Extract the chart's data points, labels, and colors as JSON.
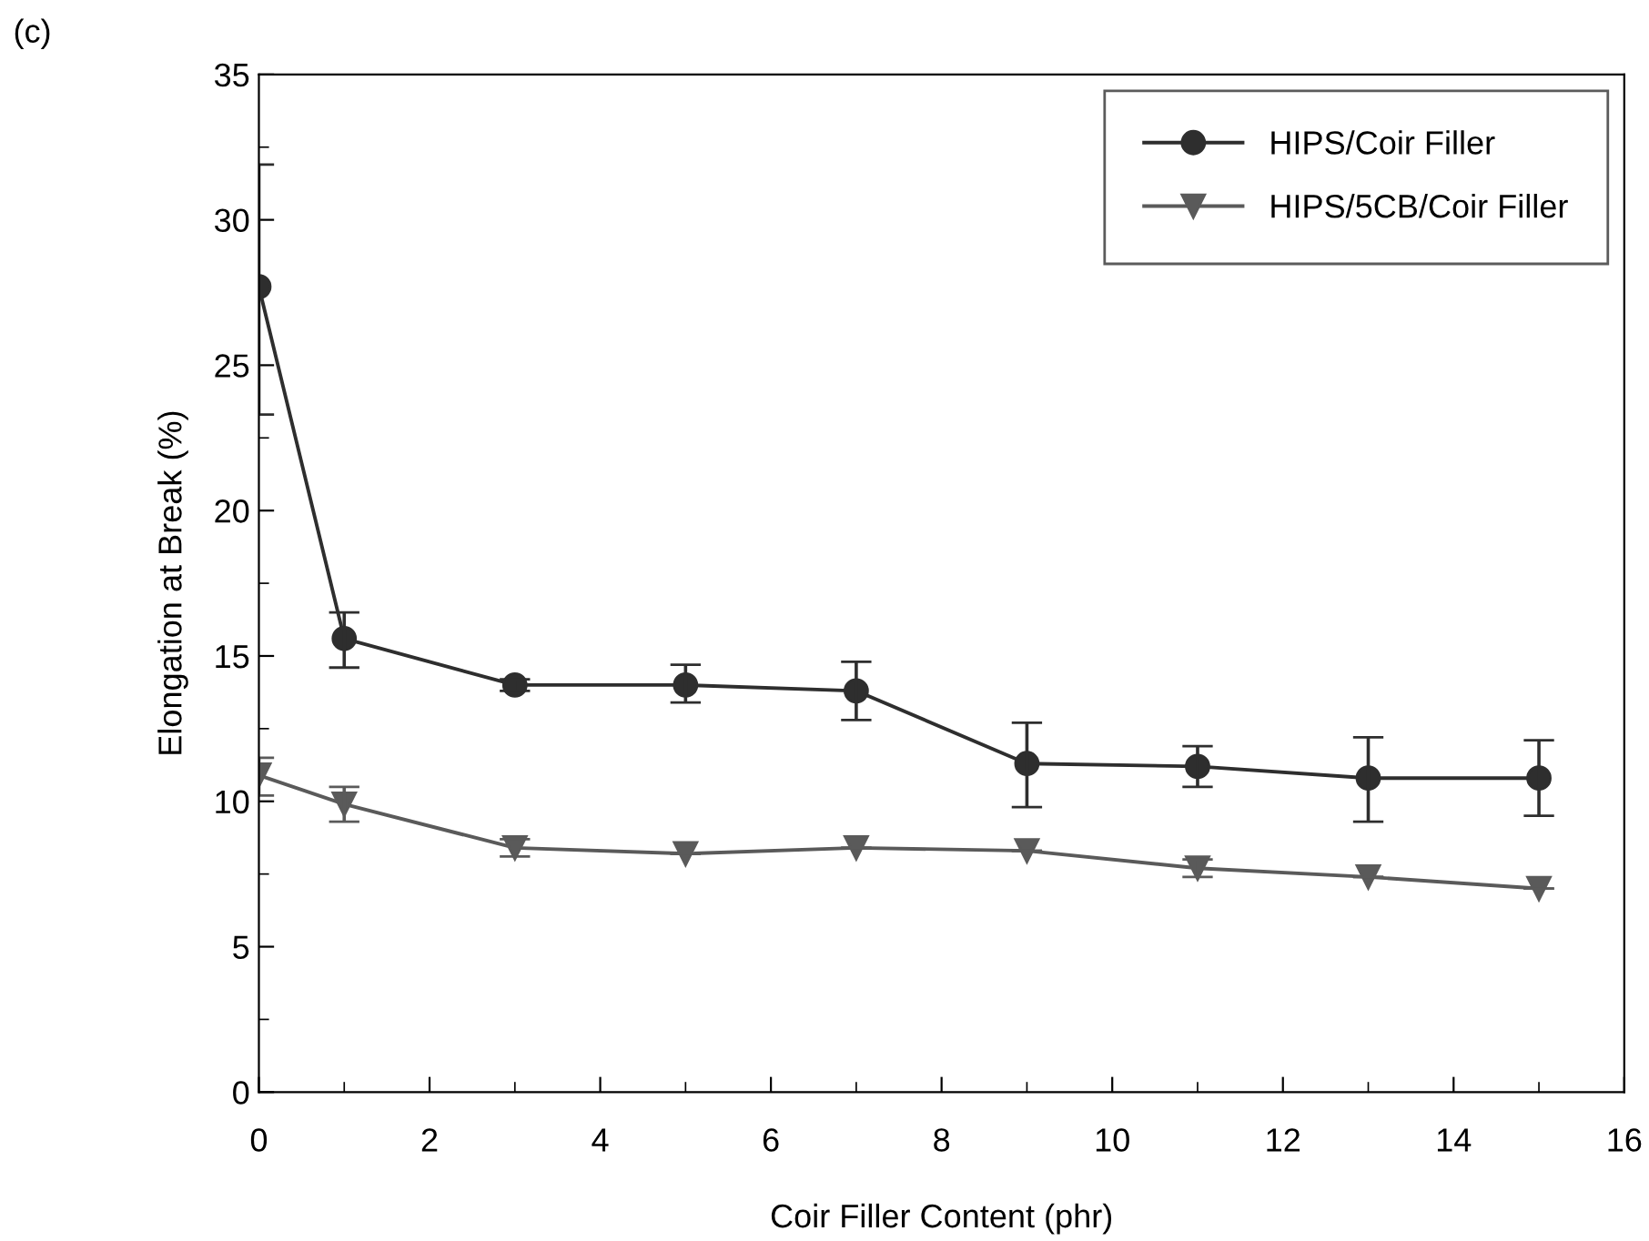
{
  "chart_data": {
    "type": "line",
    "xlabel": "Coir Filler Content (phr)",
    "ylabel": "Elongation at Break (%)",
    "annotations": [
      "(c)"
    ],
    "x": [
      0,
      1,
      3,
      5,
      7,
      9,
      11,
      13,
      15
    ],
    "series": [
      {
        "name": "HIPS/Coir Filler",
        "color": "#2e2e2e",
        "marker": "circle",
        "values": [
          27.7,
          15.6,
          14.0,
          14.0,
          13.8,
          11.3,
          11.2,
          10.8,
          10.8
        ],
        "errors": [
          [
            23.3,
            31.9
          ],
          [
            14.6,
            16.5
          ],
          [
            13.8,
            14.2
          ],
          [
            13.4,
            14.7
          ],
          [
            12.8,
            14.8
          ],
          [
            9.8,
            12.7
          ],
          [
            10.5,
            11.9
          ],
          [
            9.3,
            12.2
          ],
          [
            9.5,
            12.1
          ]
        ]
      },
      {
        "name": "HIPS/5CB/Coir Filler",
        "color": "#5a5a5a",
        "marker": "triangle",
        "values": [
          10.9,
          9.9,
          8.4,
          8.2,
          8.4,
          8.3,
          7.7,
          7.4,
          7.0
        ],
        "errors": [
          [
            10.2,
            11.5
          ],
          [
            9.3,
            10.5
          ],
          [
            8.1,
            8.7
          ],
          null,
          null,
          null,
          [
            7.4,
            8.0
          ],
          null,
          null
        ]
      }
    ],
    "xlim": [
      0,
      16
    ],
    "xticks": [
      0,
      2,
      4,
      6,
      8,
      10,
      12,
      14,
      16
    ],
    "ylim": [
      0,
      35
    ],
    "yticks": [
      0,
      5,
      10,
      15,
      20,
      25,
      30,
      35
    ],
    "grid": false,
    "legend": "top right",
    "line_style": "solid"
  }
}
